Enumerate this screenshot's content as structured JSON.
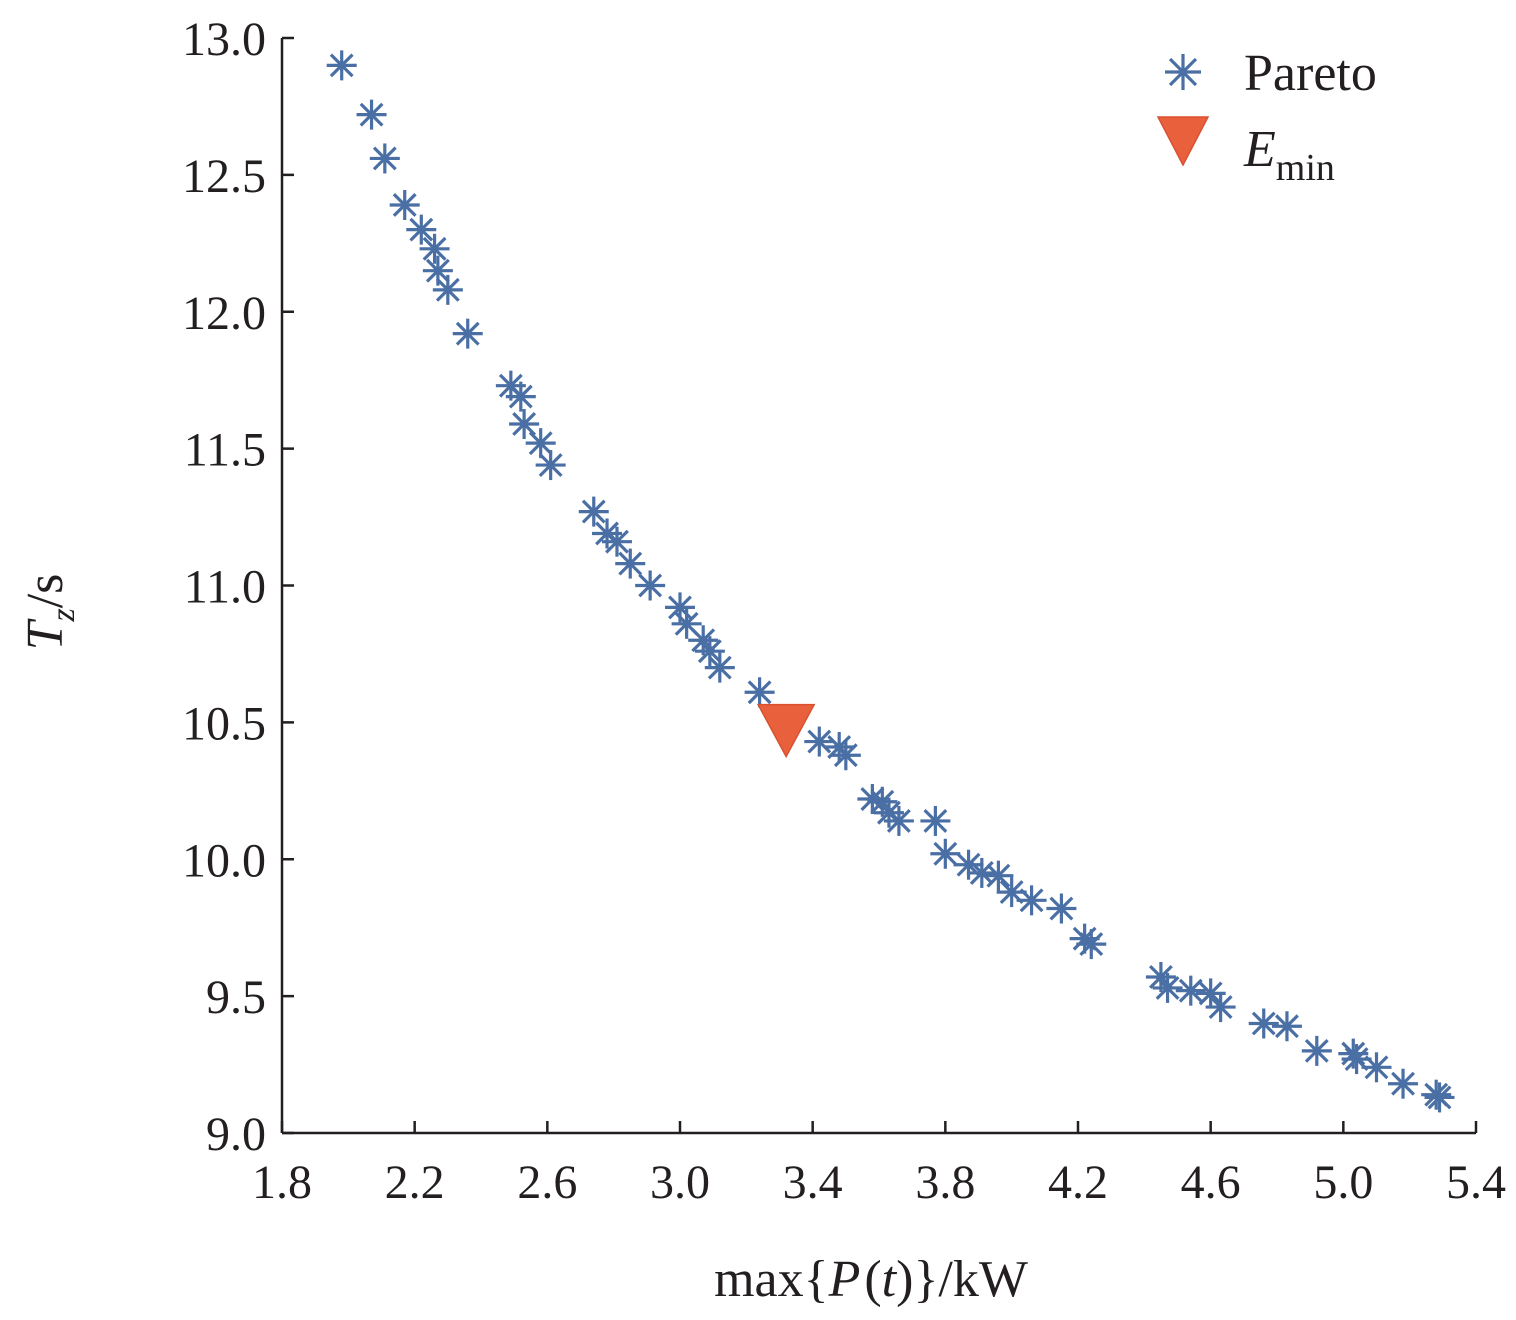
{
  "chart_data": {
    "type": "scatter",
    "xlabel": {
      "prefix": "max",
      "lbrace": "{",
      "var": "P",
      "lparen": "(",
      "arg": "t",
      "rparen": ")",
      "rbrace": "}",
      "unit": "/kW"
    },
    "ylabel": {
      "var": "T",
      "sub": "z",
      "unit": "/s"
    },
    "xlim": [
      1.8,
      5.4
    ],
    "ylim": [
      9.0,
      13.0
    ],
    "xticks": [
      "1.8",
      "2.2",
      "2.6",
      "3.0",
      "3.4",
      "3.8",
      "4.2",
      "4.6",
      "5.0",
      "5.4"
    ],
    "yticks": [
      "9.0",
      "9.5",
      "10.0",
      "10.5",
      "11.0",
      "11.5",
      "12.0",
      "12.5",
      "13.0"
    ],
    "grid": false,
    "legend_position": "top-right",
    "colors": {
      "pareto": "#4a6fa5",
      "emin": "#e8603c"
    },
    "series": [
      {
        "name": "Pareto",
        "marker": "asterisk",
        "points": [
          [
            1.98,
            12.9
          ],
          [
            2.07,
            12.72
          ],
          [
            2.11,
            12.56
          ],
          [
            2.17,
            12.39
          ],
          [
            2.22,
            12.3
          ],
          [
            2.26,
            12.23
          ],
          [
            2.27,
            12.15
          ],
          [
            2.3,
            12.08
          ],
          [
            2.36,
            11.92
          ],
          [
            2.49,
            11.73
          ],
          [
            2.52,
            11.69
          ],
          [
            2.53,
            11.59
          ],
          [
            2.58,
            11.52
          ],
          [
            2.61,
            11.44
          ],
          [
            2.74,
            11.27
          ],
          [
            2.78,
            11.19
          ],
          [
            2.81,
            11.16
          ],
          [
            2.85,
            11.08
          ],
          [
            2.91,
            11.0
          ],
          [
            3.0,
            10.92
          ],
          [
            3.02,
            10.86
          ],
          [
            3.07,
            10.8
          ],
          [
            3.09,
            10.76
          ],
          [
            3.12,
            10.7
          ],
          [
            3.24,
            10.61
          ],
          [
            3.42,
            10.43
          ],
          [
            3.48,
            10.41
          ],
          [
            3.5,
            10.38
          ],
          [
            3.58,
            10.22
          ],
          [
            3.61,
            10.21
          ],
          [
            3.63,
            10.17
          ],
          [
            3.66,
            10.14
          ],
          [
            3.77,
            10.14
          ],
          [
            3.8,
            10.02
          ],
          [
            3.87,
            9.98
          ],
          [
            3.91,
            9.95
          ],
          [
            3.96,
            9.94
          ],
          [
            4.0,
            9.88
          ],
          [
            4.06,
            9.85
          ],
          [
            4.15,
            9.82
          ],
          [
            4.22,
            9.71
          ],
          [
            4.24,
            9.69
          ],
          [
            4.45,
            9.57
          ],
          [
            4.47,
            9.53
          ],
          [
            4.54,
            9.52
          ],
          [
            4.6,
            9.51
          ],
          [
            4.63,
            9.46
          ],
          [
            4.76,
            9.4
          ],
          [
            4.83,
            9.39
          ],
          [
            4.92,
            9.3
          ],
          [
            5.03,
            9.29
          ],
          [
            5.04,
            9.27
          ],
          [
            5.1,
            9.24
          ],
          [
            5.18,
            9.18
          ],
          [
            5.28,
            9.14
          ],
          [
            5.29,
            9.13
          ]
        ]
      },
      {
        "name": "E",
        "name_sub": "min",
        "marker": "triangle-down",
        "points": [
          [
            3.32,
            10.47
          ]
        ]
      }
    ]
  }
}
